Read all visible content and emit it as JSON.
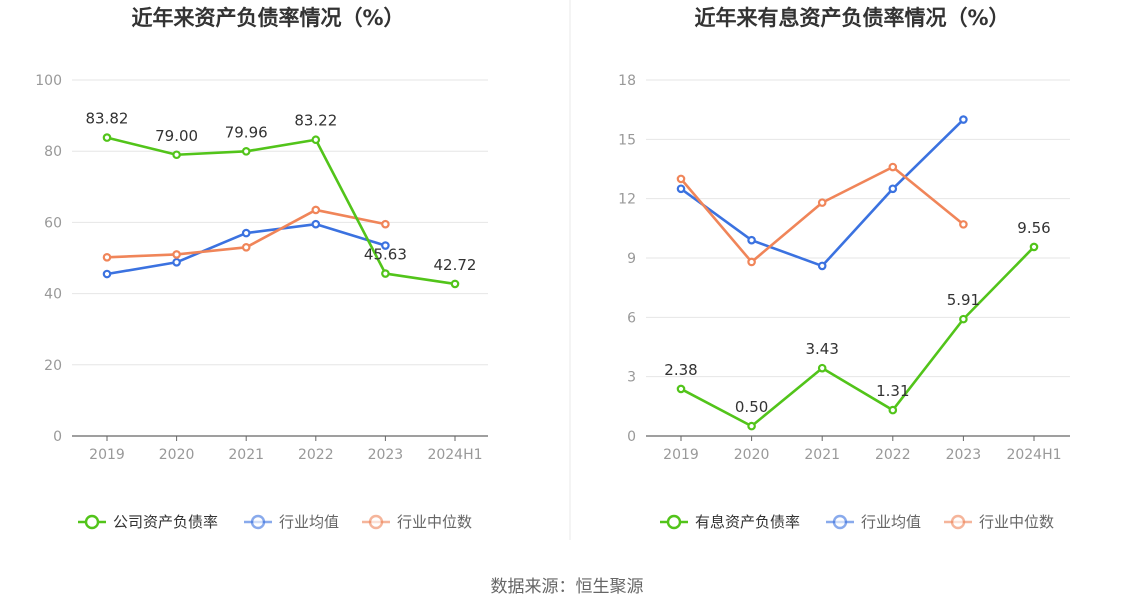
{
  "colors": {
    "company": "#52c41a",
    "avg": "#3b72e0",
    "median": "#f08559",
    "grid": "#e6e6e6",
    "axis": "#666666",
    "label": "#999999",
    "title": "#333333",
    "divider": "#e8e8e8"
  },
  "source": "数据来源：恒生聚源",
  "chart_data": [
    {
      "type": "line",
      "title": "近年来资产负债率情况（%）",
      "categories": [
        "2019",
        "2020",
        "2021",
        "2022",
        "2023",
        "2024H1"
      ],
      "ylim": [
        0,
        100
      ],
      "yticks": [
        0,
        20,
        40,
        60,
        80,
        100
      ],
      "grid": true,
      "legend_position": "bottom",
      "series": [
        {
          "name": "公司资产负债率",
          "color_key": "company",
          "values": [
            83.82,
            79.0,
            79.96,
            83.22,
            45.63,
            42.72
          ],
          "labels": [
            "83.82",
            "79.00",
            "79.96",
            "83.22",
            "45.63",
            "42.72"
          ]
        },
        {
          "name": "行业均值",
          "color_key": "avg",
          "values": [
            45.5,
            48.8,
            57.0,
            59.5,
            53.5,
            null
          ]
        },
        {
          "name": "行业中位数",
          "color_key": "median",
          "values": [
            50.2,
            51.0,
            53.0,
            63.5,
            59.5,
            null
          ]
        }
      ]
    },
    {
      "type": "line",
      "title": "近年来有息资产负债率情况（%）",
      "categories": [
        "2019",
        "2020",
        "2021",
        "2022",
        "2023",
        "2024H1"
      ],
      "ylim": [
        0,
        18
      ],
      "yticks": [
        0,
        3,
        6,
        9,
        12,
        15,
        18
      ],
      "grid": true,
      "legend_position": "bottom",
      "series": [
        {
          "name": "有息资产负债率",
          "color_key": "company",
          "values": [
            2.38,
            0.5,
            3.43,
            1.31,
            5.91,
            9.56
          ],
          "labels": [
            "2.38",
            "0.50",
            "3.43",
            "1.31",
            "5.91",
            "9.56"
          ]
        },
        {
          "name": "行业均值",
          "color_key": "avg",
          "values": [
            12.5,
            9.9,
            8.6,
            12.5,
            16.0,
            null
          ]
        },
        {
          "name": "行业中位数",
          "color_key": "median",
          "values": [
            13.0,
            8.8,
            11.8,
            13.6,
            10.7,
            null
          ]
        }
      ]
    }
  ]
}
